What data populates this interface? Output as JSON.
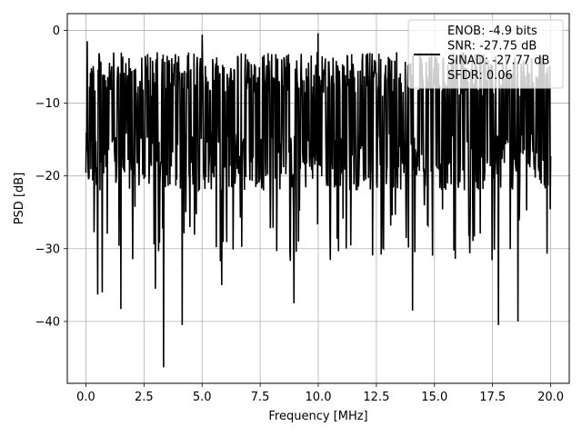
{
  "chart_data": {
    "type": "line",
    "xlabel": "Frequency [MHz]",
    "ylabel": "PSD [dB]",
    "xlim": [
      -0.8,
      20.8
    ],
    "ylim": [
      -48.5,
      2.3
    ],
    "xticks": [
      0.0,
      2.5,
      5.0,
      7.5,
      10.0,
      12.5,
      15.0,
      17.5,
      20.0
    ],
    "xtick_labels": [
      "0.0",
      "2.5",
      "5.0",
      "7.5",
      "10.0",
      "12.5",
      "15.0",
      "17.5",
      "20.0"
    ],
    "yticks": [
      0,
      -10,
      -20,
      -30,
      -40
    ],
    "ytick_labels": [
      "0",
      "−10",
      "−20",
      "−30",
      "−40"
    ],
    "grid": true,
    "legend_position": "top-right",
    "legend_lines": [
      "ENOB: -4.9 bits",
      "SNR: -27.75 dB",
      "SINAD: -27.77 dB",
      "SFDR: 0.06"
    ],
    "series": [
      {
        "color": "#000000",
        "x_range": [
          0,
          20
        ],
        "points_count": 1024,
        "band_top_approx": -3,
        "band_bottom_approx": -20,
        "peaks": [
          [
            0.05,
            -1.5
          ],
          [
            5.0,
            -0.6
          ],
          [
            10.0,
            -0.4
          ]
        ],
        "dips": [
          [
            0.5,
            -36.3
          ],
          [
            0.7,
            -36.0
          ],
          [
            1.5,
            -38.3
          ],
          [
            3.0,
            -35.5
          ],
          [
            3.35,
            -46.3
          ],
          [
            4.15,
            -40.5
          ],
          [
            5.85,
            -35.0
          ],
          [
            8.95,
            -37.5
          ],
          [
            14.05,
            -38.5
          ],
          [
            17.75,
            -40.5
          ],
          [
            18.6,
            -40.0
          ]
        ]
      }
    ]
  }
}
